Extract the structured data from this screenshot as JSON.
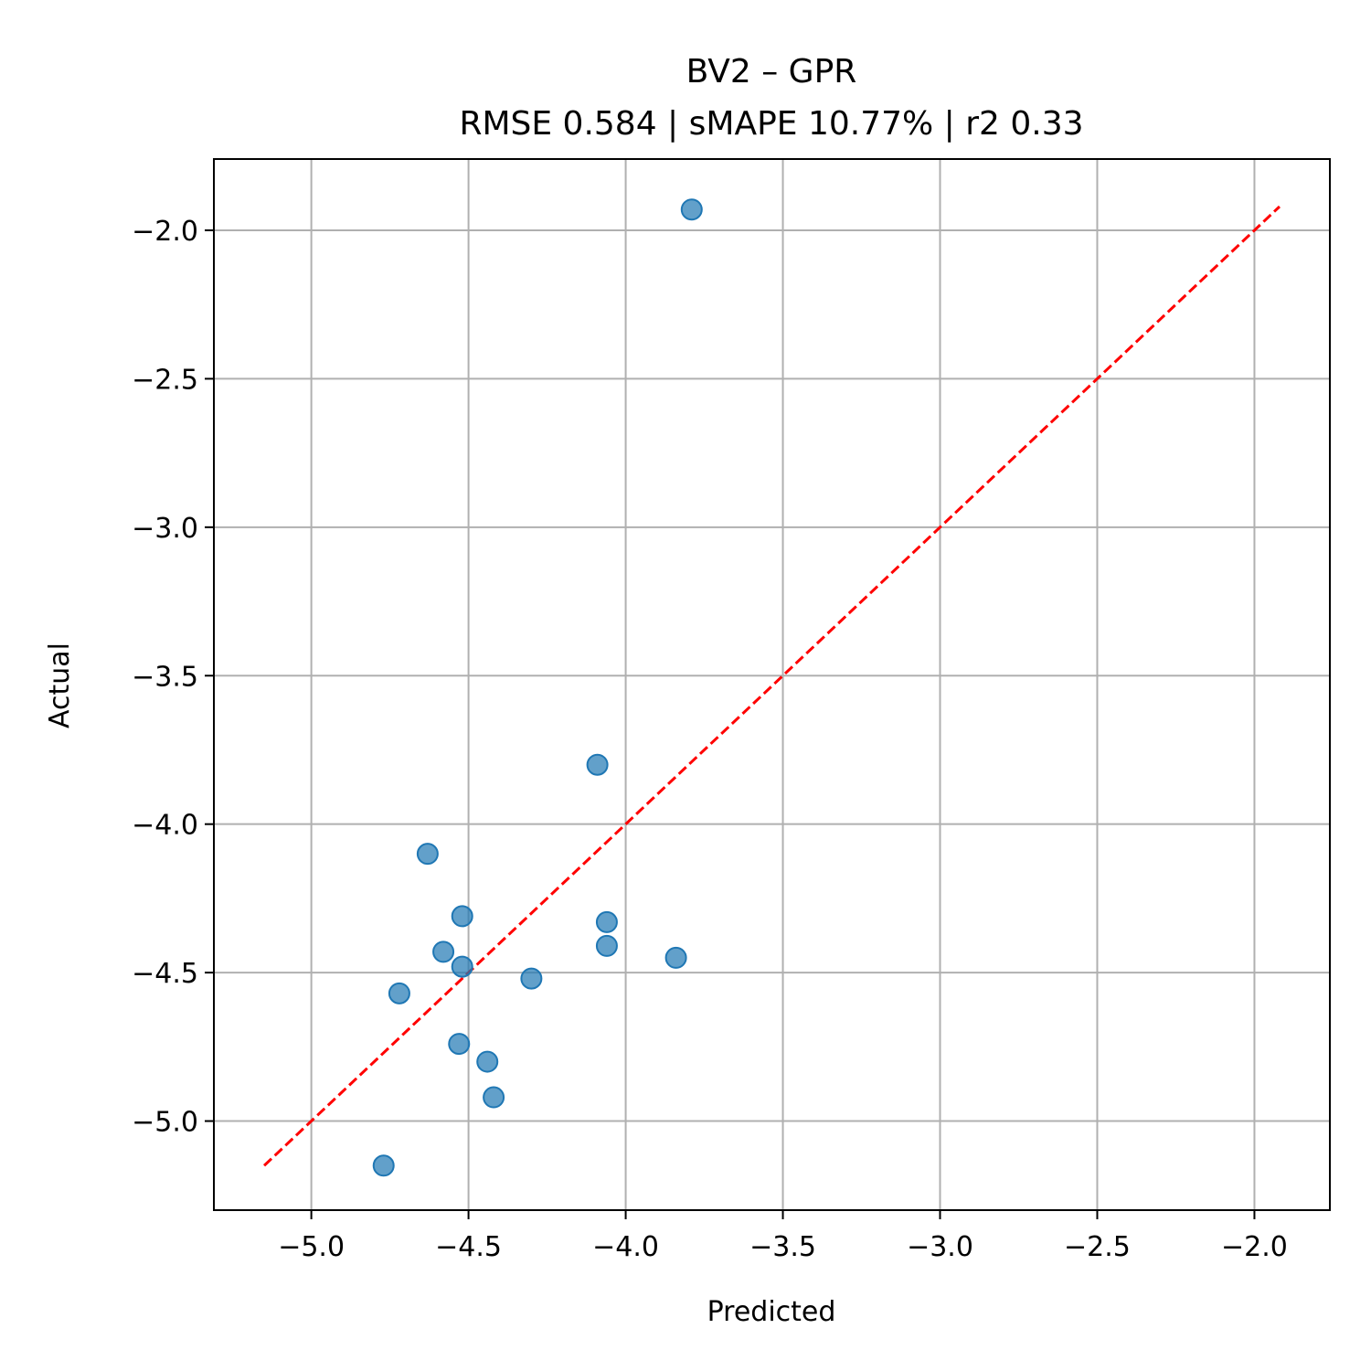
{
  "chart_data": {
    "type": "scatter",
    "title": "BV2 – GPR",
    "subtitle": "RMSE 0.584 | sMAPE 10.77%  | r2 0.33",
    "xlabel": "Predicted",
    "ylabel": "Actual",
    "xlim": [
      -5.31,
      -1.76
    ],
    "ylim": [
      -5.3,
      -1.76
    ],
    "xticks": [
      -5.0,
      -4.5,
      -4.0,
      -3.5,
      -3.0,
      -2.5,
      -2.0
    ],
    "yticks": [
      -5.0,
      -4.5,
      -4.0,
      -3.5,
      -3.0,
      -2.5,
      -2.0
    ],
    "xtick_labels": [
      "−5.0",
      "−4.5",
      "−4.0",
      "−3.5",
      "−3.0",
      "−2.5",
      "−2.0"
    ],
    "ytick_labels": [
      "−5.0",
      "−4.5",
      "−4.0",
      "−3.5",
      "−3.0",
      "−2.5",
      "−2.0"
    ],
    "grid": true,
    "identity_line": {
      "from": [
        -5.15,
        -5.15
      ],
      "to": [
        -1.92,
        -1.92
      ],
      "style": "dashed"
    },
    "points": [
      {
        "x": -3.79,
        "y": -1.93
      },
      {
        "x": -4.09,
        "y": -3.8
      },
      {
        "x": -4.63,
        "y": -4.1
      },
      {
        "x": -4.52,
        "y": -4.31
      },
      {
        "x": -4.06,
        "y": -4.33
      },
      {
        "x": -4.06,
        "y": -4.41
      },
      {
        "x": -4.58,
        "y": -4.43
      },
      {
        "x": -3.84,
        "y": -4.45
      },
      {
        "x": -4.52,
        "y": -4.48
      },
      {
        "x": -4.3,
        "y": -4.52
      },
      {
        "x": -4.72,
        "y": -4.57
      },
      {
        "x": -4.53,
        "y": -4.74
      },
      {
        "x": -4.44,
        "y": -4.8
      },
      {
        "x": -4.42,
        "y": -4.92
      },
      {
        "x": -4.77,
        "y": -5.15
      }
    ],
    "colors": {
      "points": "#1f77b4",
      "identity_line": "#ff0000",
      "grid": "#b0b0b0",
      "axes": "#000000"
    }
  }
}
